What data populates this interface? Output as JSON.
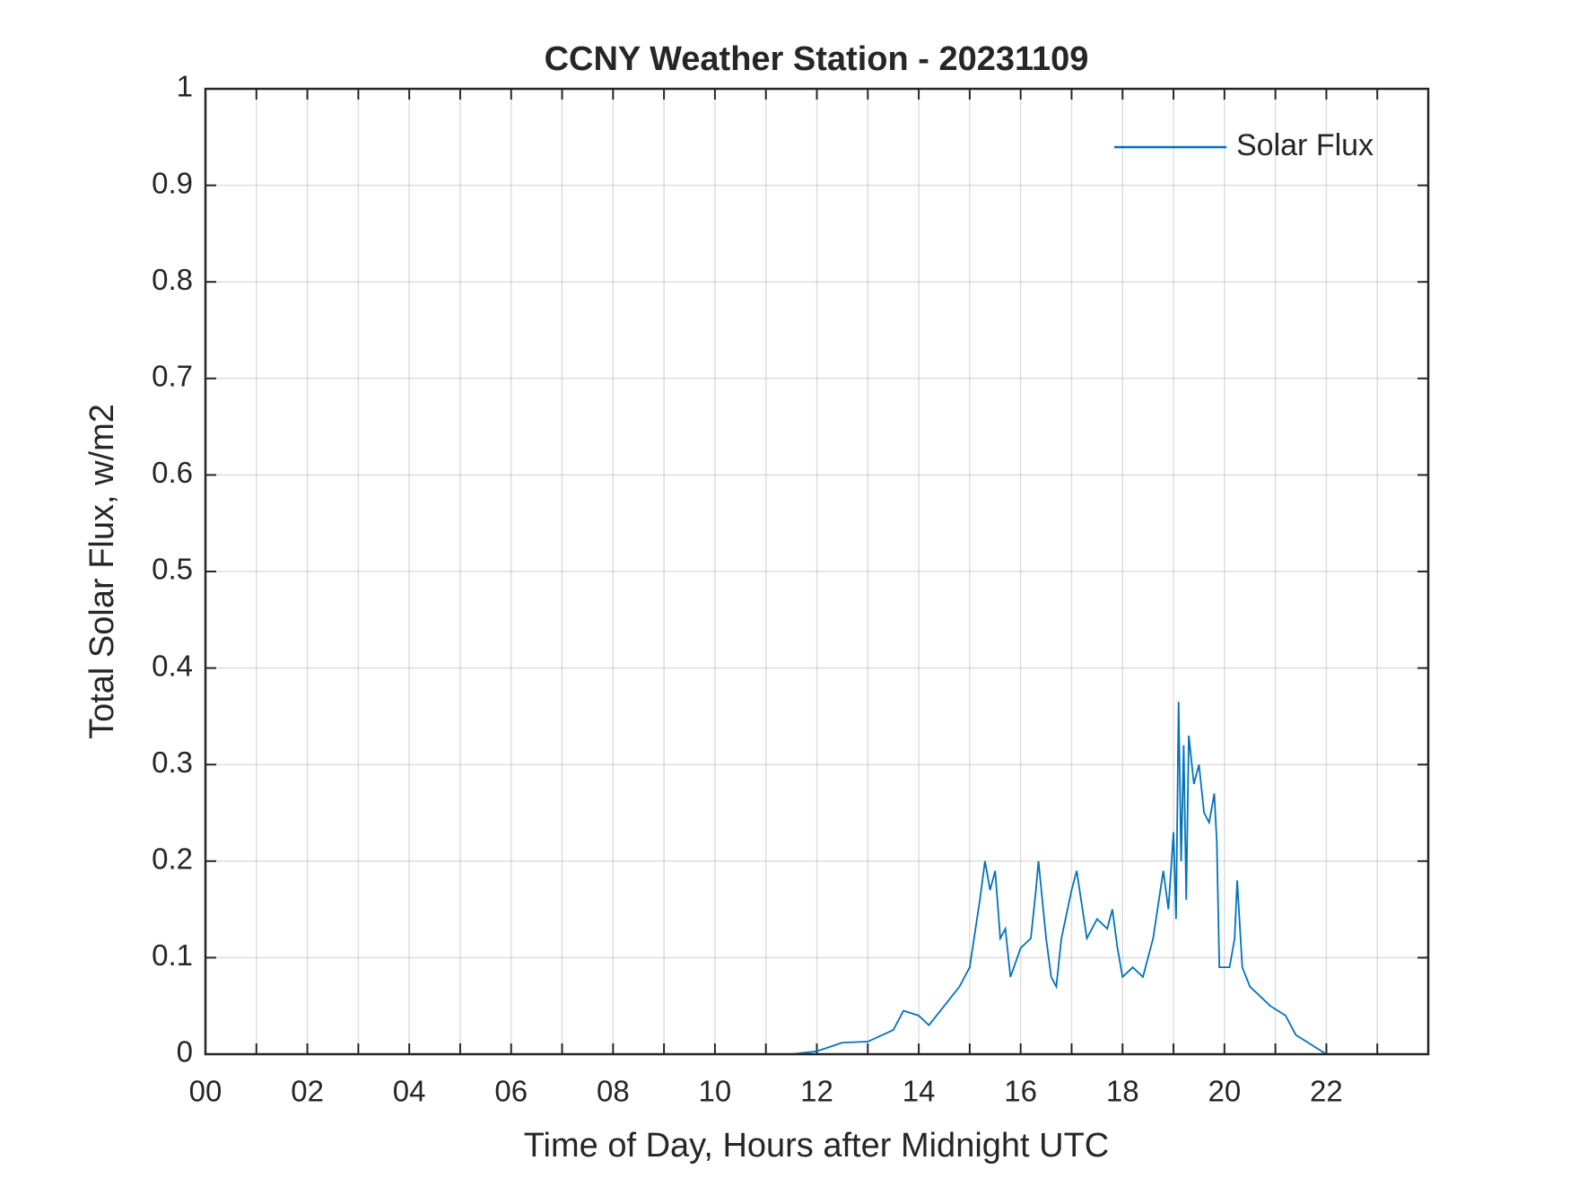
{
  "chart_data": {
    "type": "line",
    "title": "CCNY Weather Station - 20231109",
    "xlabel": "Time of Day, Hours after Midnight UTC",
    "ylabel": "Total Solar Flux, w/m2",
    "xlim": [
      0,
      24
    ],
    "ylim": [
      0,
      1
    ],
    "xticks": [
      {
        "value": 0,
        "label": "00"
      },
      {
        "value": 2,
        "label": "02"
      },
      {
        "value": 4,
        "label": "04"
      },
      {
        "value": 6,
        "label": "06"
      },
      {
        "value": 8,
        "label": "08"
      },
      {
        "value": 10,
        "label": "10"
      },
      {
        "value": 12,
        "label": "12"
      },
      {
        "value": 14,
        "label": "14"
      },
      {
        "value": 16,
        "label": "16"
      },
      {
        "value": 18,
        "label": "18"
      },
      {
        "value": 20,
        "label": "20"
      },
      {
        "value": 22,
        "label": "22"
      }
    ],
    "xminorticks": [
      1,
      3,
      5,
      7,
      9,
      11,
      13,
      15,
      17,
      19,
      21,
      23
    ],
    "yticks": [
      0,
      0.1,
      0.2,
      0.3,
      0.4,
      0.5,
      0.6,
      0.7,
      0.8,
      0.9,
      1
    ],
    "grid": true,
    "legend": "upper right",
    "x": [
      0,
      11.5,
      12,
      12.5,
      13,
      13.5,
      13.7,
      14,
      14.2,
      14.5,
      14.8,
      15,
      15.2,
      15.3,
      15.4,
      15.5,
      15.6,
      15.7,
      15.8,
      16,
      16.2,
      16.3,
      16.35,
      16.5,
      16.6,
      16.7,
      16.8,
      17,
      17.1,
      17.3,
      17.5,
      17.7,
      17.8,
      17.9,
      18,
      18.2,
      18.4,
      18.6,
      18.8,
      18.9,
      19,
      19.05,
      19.1,
      19.15,
      19.2,
      19.25,
      19.3,
      19.4,
      19.5,
      19.6,
      19.7,
      19.8,
      19.85,
      19.9,
      20.1,
      20.2,
      20.25,
      20.35,
      20.5,
      20.7,
      20.9,
      21.2,
      21.4,
      21.7,
      22,
      24
    ],
    "series": [
      {
        "name": "Solar Flux",
        "color": "#0072bd",
        "values": [
          0,
          0,
          0.003,
          0.012,
          0.013,
          0.025,
          0.045,
          0.04,
          0.03,
          0.05,
          0.07,
          0.09,
          0.16,
          0.2,
          0.17,
          0.19,
          0.12,
          0.13,
          0.08,
          0.11,
          0.12,
          0.17,
          0.2,
          0.12,
          0.08,
          0.07,
          0.12,
          0.17,
          0.19,
          0.12,
          0.14,
          0.13,
          0.15,
          0.11,
          0.08,
          0.09,
          0.08,
          0.12,
          0.19,
          0.15,
          0.23,
          0.14,
          0.365,
          0.2,
          0.32,
          0.16,
          0.33,
          0.28,
          0.3,
          0.25,
          0.24,
          0.27,
          0.22,
          0.09,
          0.09,
          0.12,
          0.18,
          0.09,
          0.07,
          0.06,
          0.05,
          0.04,
          0.02,
          0.01,
          0,
          0
        ]
      }
    ]
  }
}
